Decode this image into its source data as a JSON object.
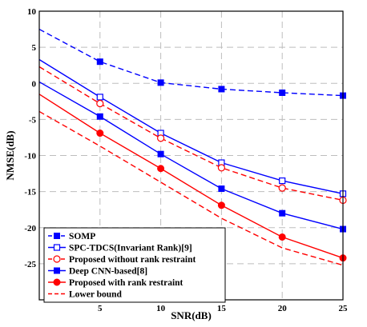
{
  "chart_data": {
    "type": "line",
    "xlabel": "SNR(dB)",
    "ylabel": "NMSE(dB)",
    "xlim": [
      0,
      25
    ],
    "ylim": [
      -30,
      10
    ],
    "xticks": [
      5,
      10,
      15,
      20,
      25
    ],
    "yticks": [
      10,
      5,
      0,
      -5,
      -10,
      -15,
      -20,
      -25
    ],
    "grid": true,
    "legend_position": "bottom-left",
    "series": [
      {
        "name": "SOMP",
        "color": "#0000ff",
        "dash": "dashed",
        "marker": "filled-square",
        "x": [
          0,
          5,
          10,
          15,
          20,
          25
        ],
        "y": [
          7.5,
          3.0,
          0.1,
          -0.8,
          -1.3,
          -1.7
        ]
      },
      {
        "name": "SPC-TDCS(Invariant Rank)[9]",
        "color": "#0000ff",
        "dash": "solid",
        "marker": "open-square",
        "x": [
          0,
          5,
          10,
          15,
          20,
          25
        ],
        "y": [
          3.3,
          -1.9,
          -6.9,
          -11.0,
          -13.5,
          -15.3
        ]
      },
      {
        "name": "Proposed without rank restraint",
        "color": "#ff0000",
        "dash": "dashed",
        "marker": "open-circle",
        "x": [
          0,
          5,
          10,
          15,
          20,
          25
        ],
        "y": [
          2.3,
          -2.8,
          -7.6,
          -11.7,
          -14.5,
          -16.2
        ]
      },
      {
        "name": "Deep CNN-based[8]",
        "color": "#0000ff",
        "dash": "solid",
        "marker": "filled-square",
        "x": [
          0,
          5,
          10,
          15,
          20,
          25
        ],
        "y": [
          0.2,
          -4.6,
          -9.8,
          -14.6,
          -18.0,
          -20.2
        ]
      },
      {
        "name": "Proposed with rank restraint",
        "color": "#ff0000",
        "dash": "solid",
        "marker": "filled-circle",
        "x": [
          0,
          5,
          10,
          15,
          20,
          25
        ],
        "y": [
          -1.5,
          -6.9,
          -11.8,
          -16.9,
          -21.3,
          -24.2
        ]
      },
      {
        "name": "Lower bound",
        "color": "#ff0000",
        "dash": "dashed",
        "marker": "none",
        "x": [
          0,
          5,
          10,
          15,
          20,
          25
        ],
        "y": [
          -3.9,
          -8.7,
          -13.7,
          -18.7,
          -22.8,
          -25.2
        ]
      }
    ]
  }
}
